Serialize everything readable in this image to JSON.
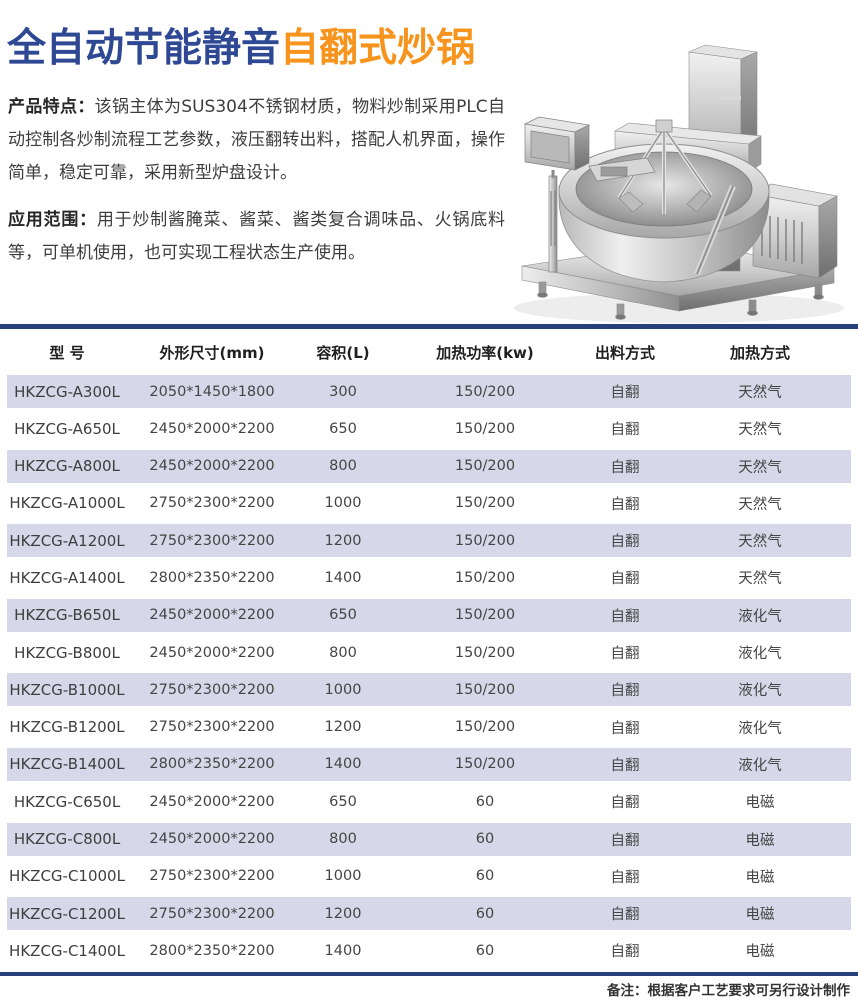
{
  "page": {
    "title": {
      "blue_part": "全自动节能静音",
      "orange_part": "自翻式炒锅"
    },
    "features": {
      "label": "产品特点：",
      "text": "该锅主体为SUS304不锈钢材质，物料炒制采用PLC自动控制各炒制流程工艺参数，液压翻转出料，搭配人机界面，操作简单，稳定可靠，采用新型炉盘设计。"
    },
    "scope": {
      "label": "应用范围：",
      "text": "用于炒制酱腌菜、酱菜、酱类复合调味品、火锅底料等，可单机使用，也可实现工程状态生产使用。"
    },
    "product_image": "stainless-steel-auto-tilting-wok-3d-render",
    "note": "备注：根据客户工艺要求可另行设计制作"
  },
  "colors": {
    "title_blue": "#2e4893",
    "title_orange": "#f7941d",
    "rule_navy": "#26407c",
    "row_shade": "#d6d8e9"
  },
  "table": {
    "columns": [
      "型  号",
      "外形尺寸(mm)",
      "容积(L)",
      "加热功率(kw)",
      "出料方式",
      "加热方式"
    ],
    "rows": [
      [
        "HKZCG-A300L",
        "2050*1450*1800",
        "300",
        "150/200",
        "自翻",
        "天然气"
      ],
      [
        "HKZCG-A650L",
        "2450*2000*2200",
        "650",
        "150/200",
        "自翻",
        "天然气"
      ],
      [
        "HKZCG-A800L",
        "2450*2000*2200",
        "800",
        "150/200",
        "自翻",
        "天然气"
      ],
      [
        "HKZCG-A1000L",
        "2750*2300*2200",
        "1000",
        "150/200",
        "自翻",
        "天然气"
      ],
      [
        "HKZCG-A1200L",
        "2750*2300*2200",
        "1200",
        "150/200",
        "自翻",
        "天然气"
      ],
      [
        "HKZCG-A1400L",
        "2800*2350*2200",
        "1400",
        "150/200",
        "自翻",
        "天然气"
      ],
      [
        "HKZCG-B650L",
        "2450*2000*2200",
        "650",
        "150/200",
        "自翻",
        "液化气"
      ],
      [
        "HKZCG-B800L",
        "2450*2000*2200",
        "800",
        "150/200",
        "自翻",
        "液化气"
      ],
      [
        "HKZCG-B1000L",
        "2750*2300*2200",
        "1000",
        "150/200",
        "自翻",
        "液化气"
      ],
      [
        "HKZCG-B1200L",
        "2750*2300*2200",
        "1200",
        "150/200",
        "自翻",
        "液化气"
      ],
      [
        "HKZCG-B1400L",
        "2800*2350*2200",
        "1400",
        "150/200",
        "自翻",
        "液化气"
      ],
      [
        "HKZCG-C650L",
        "2450*2000*2200",
        "650",
        "60",
        "自翻",
        "电磁"
      ],
      [
        "HKZCG-C800L",
        "2450*2000*2200",
        "800",
        "60",
        "自翻",
        "电磁"
      ],
      [
        "HKZCG-C1000L",
        "2750*2300*2200",
        "1000",
        "60",
        "自翻",
        "电磁"
      ],
      [
        "HKZCG-C1200L",
        "2750*2300*2200",
        "1200",
        "60",
        "自翻",
        "电磁"
      ],
      [
        "HKZCG-C1400L",
        "2800*2350*2200",
        "1400",
        "60",
        "自翻",
        "电磁"
      ]
    ]
  }
}
